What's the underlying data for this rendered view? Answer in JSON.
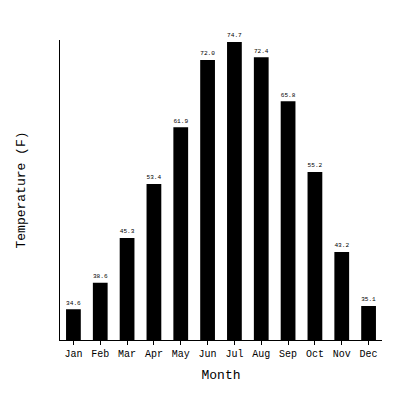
{
  "chart_data": {
    "type": "bar",
    "x_label": "Month",
    "y_label": "Temperature (F)",
    "categories": [
      "Jan",
      "Feb",
      "Mar",
      "Apr",
      "May",
      "Jun",
      "Jul",
      "Aug",
      "Sep",
      "Oct",
      "Nov",
      "Dec"
    ],
    "values": [
      34.6,
      38.6,
      45.3,
      53.4,
      61.9,
      72.0,
      74.7,
      72.4,
      65.8,
      55.2,
      43.2,
      35.1
    ],
    "value_labels": [
      "34.6",
      "38.6",
      "45.3",
      "53.4",
      "61.9",
      "72.0",
      "74.7",
      "72.4",
      "65.8",
      "55.2",
      "43.2",
      "35.1"
    ],
    "color": "#000000",
    "ylim": [
      30,
      75
    ],
    "yticks": [],
    "grid": false,
    "data_labels": true,
    "tick_labels": "x"
  }
}
